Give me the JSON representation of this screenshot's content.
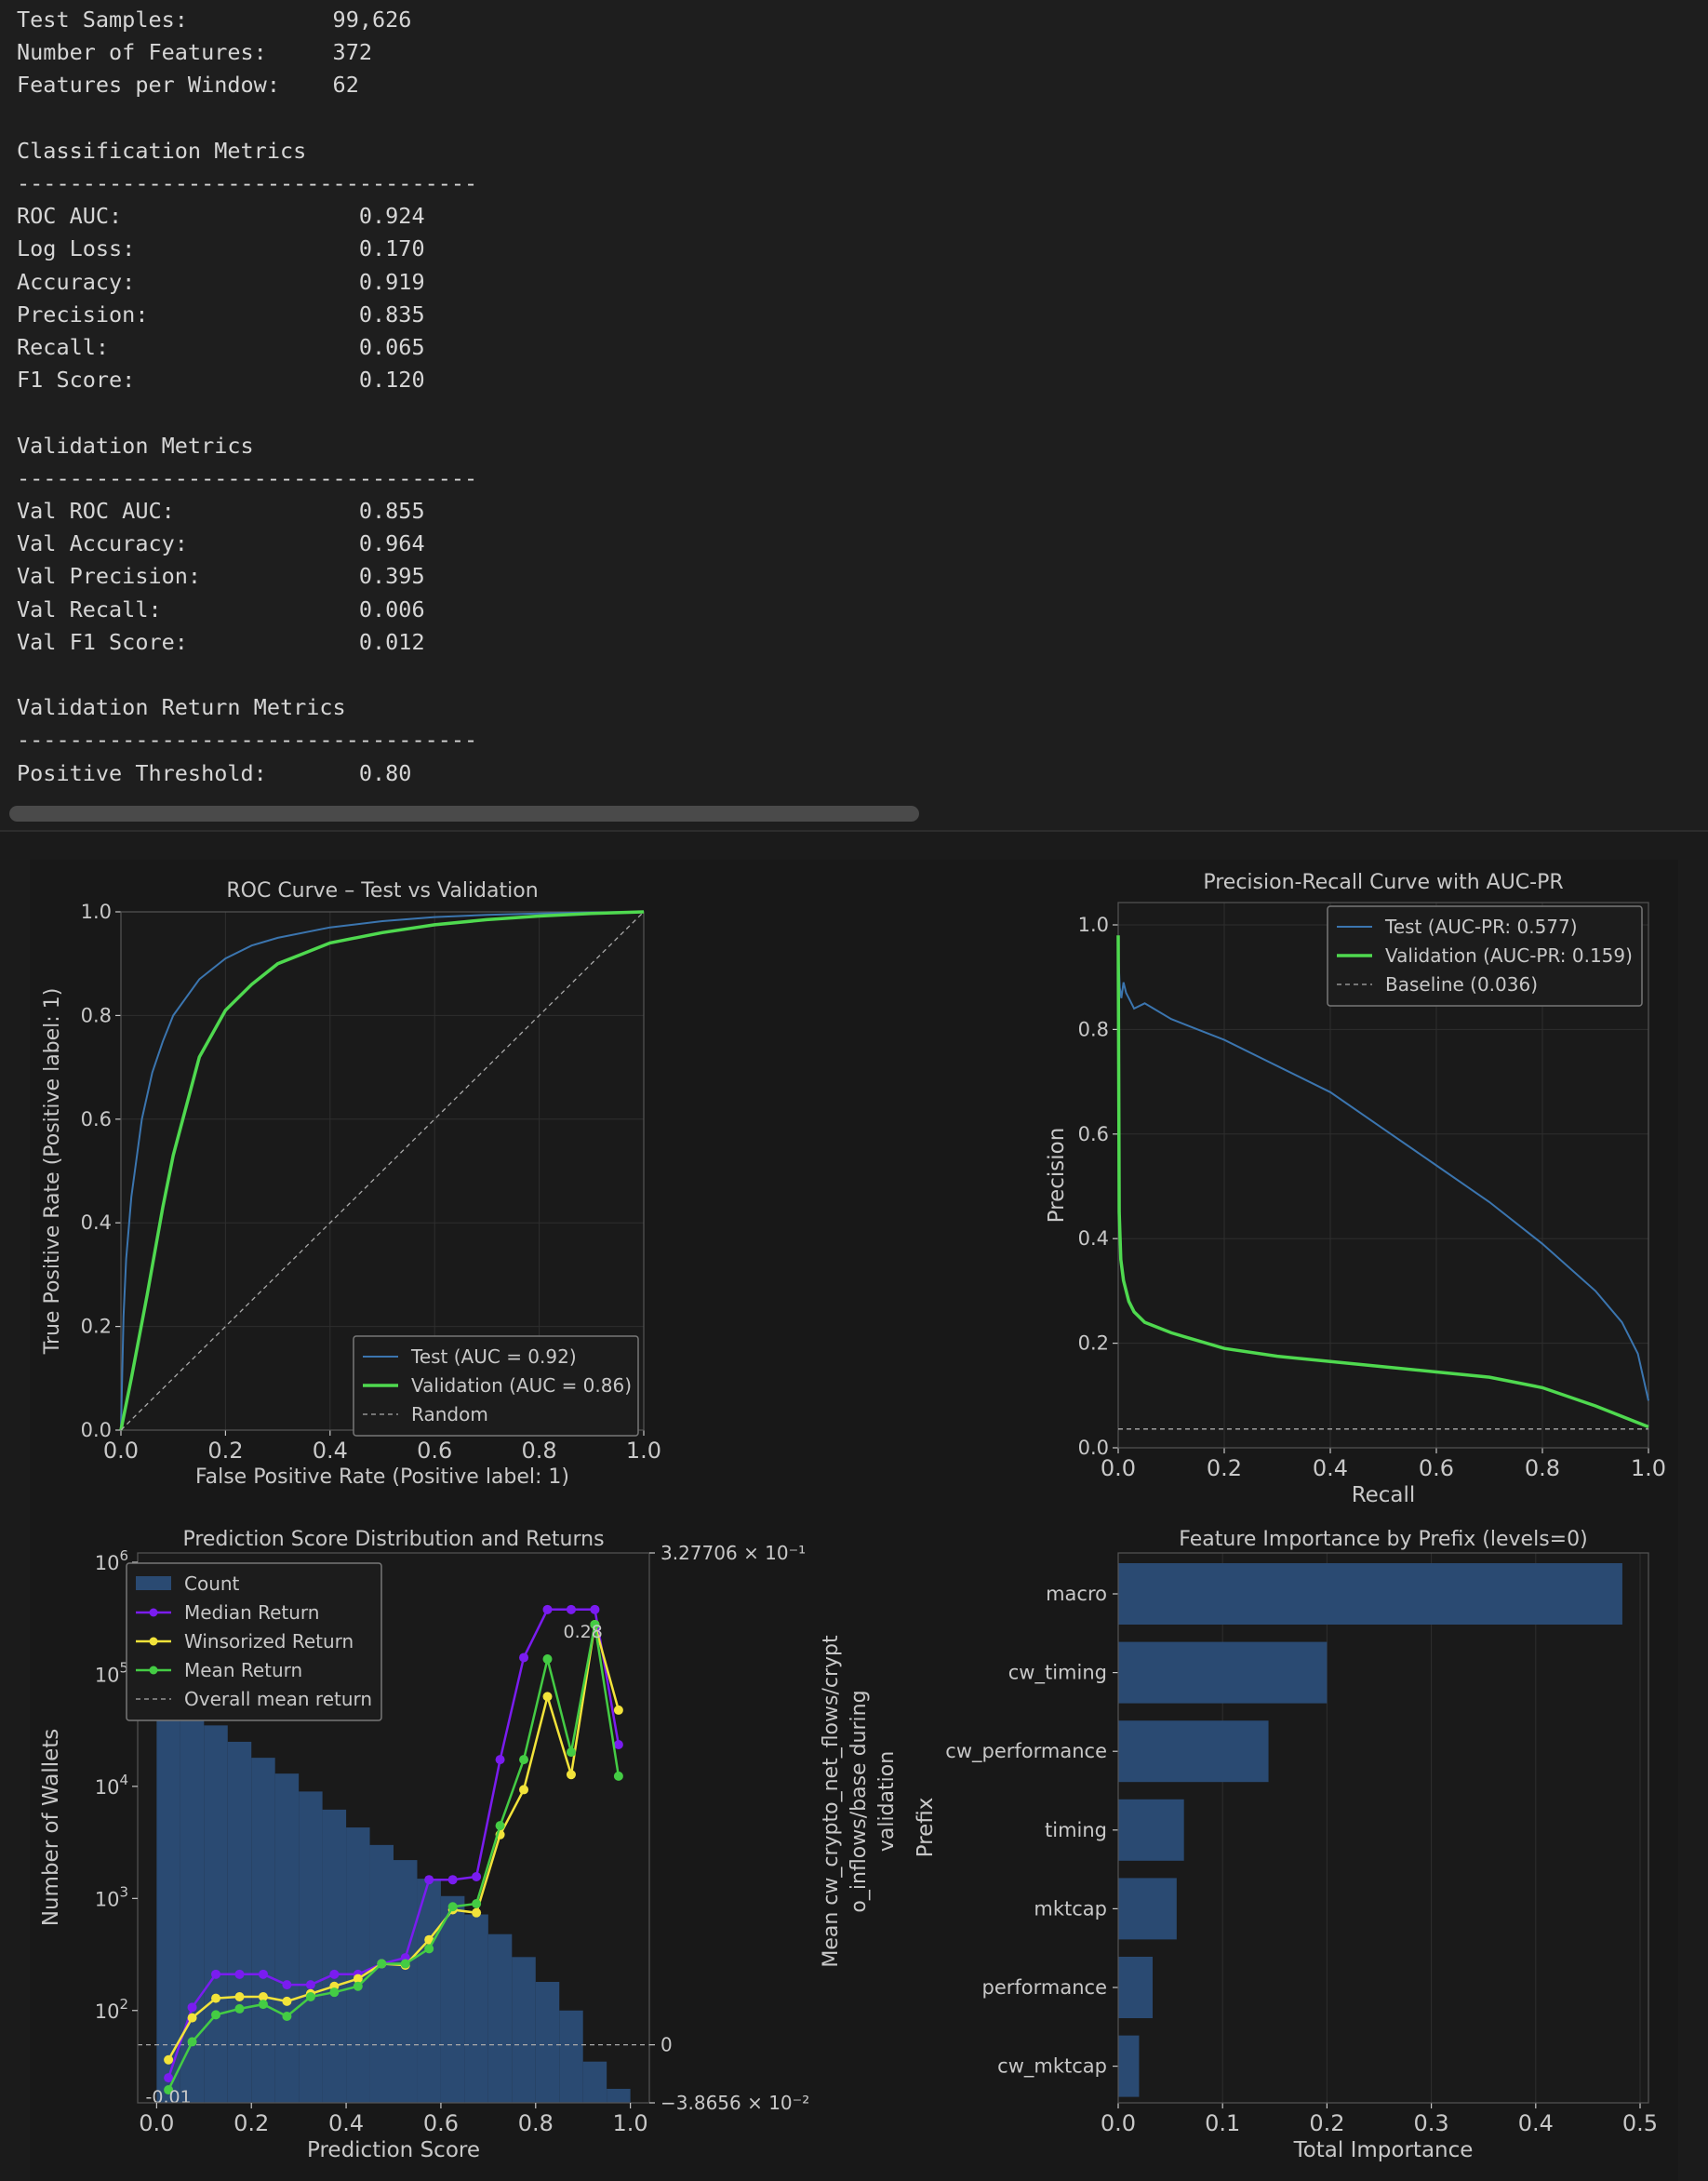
{
  "console": {
    "lines": [
      "Test Samples:           99,626",
      "Number of Features:     372",
      "Features per Window:    62",
      "",
      "Classification Metrics",
      "-----------------------------------",
      "ROC AUC:                  0.924",
      "Log Loss:                 0.170",
      "Accuracy:                 0.919",
      "Precision:                0.835",
      "Recall:                   0.065",
      "F1 Score:                 0.120",
      "",
      "Validation Metrics",
      "-----------------------------------",
      "Val ROC AUC:              0.855",
      "Val Accuracy:             0.964",
      "Val Precision:            0.395",
      "Val Recall:               0.006",
      "Val F1 Score:             0.012",
      "",
      "Validation Return Metrics",
      "-----------------------------------",
      "Positive Threshold:       0.80"
    ]
  },
  "colors": {
    "test": "#3b75af",
    "validation": "#4fd94f",
    "median": "#7a1cf0",
    "winsorized": "#f2e33a",
    "mean": "#44cc44",
    "bars": "#2a4a72",
    "text": "#c8c8c8",
    "axis_bg": "#1a1a1a",
    "grid": "#2e2e2e"
  },
  "chart_data": [
    {
      "id": "roc",
      "type": "line",
      "title": "ROC Curve – Test vs Validation",
      "xlabel": "False Positive Rate (Positive label: 1)",
      "ylabel": "True Positive Rate (Positive label: 1)",
      "xlim": [
        0,
        1
      ],
      "ylim": [
        0,
        1
      ],
      "xticks": [
        "0.0",
        "0.2",
        "0.4",
        "0.6",
        "0.8",
        "1.0"
      ],
      "yticks": [
        "0.0",
        "0.2",
        "0.4",
        "0.6",
        "0.8",
        "1.0"
      ],
      "grid": true,
      "legend_position": "lower-right",
      "series": [
        {
          "name": "Test (AUC = 0.92)",
          "style": "solid",
          "x": [
            0,
            0.005,
            0.01,
            0.02,
            0.04,
            0.06,
            0.08,
            0.1,
            0.15,
            0.2,
            0.25,
            0.3,
            0.4,
            0.5,
            0.6,
            0.7,
            0.8,
            0.9,
            1.0
          ],
          "y": [
            0,
            0.22,
            0.33,
            0.45,
            0.6,
            0.69,
            0.75,
            0.8,
            0.87,
            0.91,
            0.935,
            0.95,
            0.97,
            0.982,
            0.99,
            0.994,
            0.997,
            0.999,
            1.0
          ]
        },
        {
          "name": "Validation (AUC = 0.86)",
          "style": "solid",
          "x": [
            0,
            0.02,
            0.05,
            0.08,
            0.1,
            0.15,
            0.2,
            0.25,
            0.3,
            0.35,
            0.4,
            0.5,
            0.6,
            0.7,
            0.8,
            0.9,
            1.0
          ],
          "y": [
            0,
            0.1,
            0.26,
            0.43,
            0.53,
            0.72,
            0.81,
            0.86,
            0.9,
            0.92,
            0.94,
            0.96,
            0.975,
            0.985,
            0.992,
            0.997,
            1.0
          ]
        },
        {
          "name": "Random",
          "style": "dashed",
          "x": [
            0,
            1
          ],
          "y": [
            0,
            1
          ]
        }
      ]
    },
    {
      "id": "pr",
      "type": "line",
      "title": "Precision-Recall Curve with AUC-PR",
      "xlabel": "Recall",
      "ylabel": "Precision",
      "xlim": [
        0,
        1
      ],
      "ylim": [
        0,
        1
      ],
      "xticks": [
        "0.0",
        "0.2",
        "0.4",
        "0.6",
        "0.8",
        "1.0"
      ],
      "yticks": [
        "0.0",
        "0.2",
        "0.4",
        "0.6",
        "0.8",
        "1.0"
      ],
      "grid": true,
      "legend_position": "upper-right",
      "series": [
        {
          "name": "Test (AUC-PR: 0.577)",
          "style": "solid",
          "x": [
            0,
            0.003,
            0.006,
            0.01,
            0.015,
            0.02,
            0.03,
            0.05,
            0.1,
            0.15,
            0.2,
            0.3,
            0.4,
            0.5,
            0.6,
            0.7,
            0.8,
            0.9,
            0.95,
            0.98,
            1.0
          ],
          "y": [
            0.95,
            0.88,
            0.86,
            0.89,
            0.87,
            0.86,
            0.84,
            0.85,
            0.82,
            0.8,
            0.78,
            0.73,
            0.68,
            0.61,
            0.54,
            0.47,
            0.39,
            0.3,
            0.24,
            0.18,
            0.09
          ]
        },
        {
          "name": "Validation (AUC-PR: 0.159)",
          "style": "solid",
          "x": [
            0,
            0.002,
            0.005,
            0.01,
            0.02,
            0.03,
            0.05,
            0.1,
            0.2,
            0.3,
            0.4,
            0.5,
            0.6,
            0.7,
            0.8,
            0.9,
            0.95,
            1.0
          ],
          "y": [
            0.98,
            0.45,
            0.36,
            0.32,
            0.28,
            0.26,
            0.24,
            0.22,
            0.19,
            0.175,
            0.165,
            0.155,
            0.145,
            0.135,
            0.115,
            0.08,
            0.06,
            0.04
          ]
        },
        {
          "name": "Baseline (0.036)",
          "style": "dashed",
          "x": [
            0,
            1
          ],
          "y": [
            0.036,
            0.036
          ]
        }
      ]
    },
    {
      "id": "dist",
      "type": "bar",
      "title": "Prediction Score Distribution and Returns",
      "xlabel": "Prediction Score",
      "ylabel": "Number of Wallets",
      "y2label": "Mean cw_crypto_net_flows/crypto_inflows/base during validation",
      "y2label_lines": [
        "Mean cw_crypto_net_flows/crypt",
        "o_inflows/base during",
        "validation"
      ],
      "xlim": [
        -0.04,
        1.04
      ],
      "xticks": [
        "0.0",
        "0.2",
        "0.4",
        "0.6",
        "0.8",
        "1.0"
      ],
      "yscale": "log",
      "ylim": [
        15,
        1000000
      ],
      "yticks": [
        {
          "pow": "2",
          "v": 100
        },
        {
          "pow": "3",
          "v": 1000
        },
        {
          "pow": "4",
          "v": 10000
        },
        {
          "pow": "5",
          "v": 100000
        },
        {
          "pow": "6",
          "v": 1000000
        }
      ],
      "y2_range": [
        -0.038656,
        0.327706
      ],
      "y2_top_label": "3.27706 × 10⁻¹",
      "y2_zero_label": "0",
      "y2_bottom_label": "−3.8656 × 10⁻²",
      "annotations": [
        {
          "text": "-0.01",
          "x": 0.025,
          "y2": -0.03
        },
        {
          "text": "0.28",
          "x": 0.9,
          "y2": 0.28
        }
      ],
      "grid": false,
      "legend_position": "upper-left",
      "bars": {
        "name": "Count",
        "width": 0.05,
        "x": [
          0.025,
          0.075,
          0.125,
          0.175,
          0.225,
          0.275,
          0.325,
          0.375,
          0.425,
          0.475,
          0.525,
          0.575,
          0.625,
          0.675,
          0.725,
          0.775,
          0.825,
          0.875,
          0.925,
          0.975
        ],
        "values": [
          100000,
          52000,
          35000,
          25000,
          18000,
          13000,
          9000,
          6200,
          4300,
          3000,
          2200,
          1500,
          1050,
          720,
          480,
          300,
          180,
          100,
          35,
          20
        ]
      },
      "lines": [
        {
          "name": "Median Return",
          "x": [
            0.025,
            0.075,
            0.125,
            0.175,
            0.225,
            0.275,
            0.325,
            0.375,
            0.425,
            0.475,
            0.525,
            0.575,
            0.625,
            0.675,
            0.725,
            0.775,
            0.825,
            0.875,
            0.925,
            0.975
          ],
          "y": [
            -0.022,
            0.025,
            0.047,
            0.047,
            0.047,
            0.04,
            0.04,
            0.047,
            0.047,
            0.054,
            0.058,
            0.11,
            0.11,
            0.112,
            0.19,
            0.258,
            0.29,
            0.29,
            0.29,
            0.2
          ]
        },
        {
          "name": "Winsorized Return",
          "x": [
            0.025,
            0.075,
            0.125,
            0.175,
            0.225,
            0.275,
            0.325,
            0.375,
            0.425,
            0.475,
            0.525,
            0.575,
            0.625,
            0.675,
            0.725,
            0.775,
            0.825,
            0.875,
            0.925,
            0.975
          ],
          "y": [
            -0.01,
            0.018,
            0.031,
            0.032,
            0.032,
            0.029,
            0.034,
            0.039,
            0.044,
            0.054,
            0.053,
            0.07,
            0.09,
            0.088,
            0.14,
            0.17,
            0.232,
            0.18,
            0.28,
            0.223
          ]
        },
        {
          "name": "Mean Return",
          "x": [
            0.025,
            0.075,
            0.125,
            0.175,
            0.225,
            0.275,
            0.325,
            0.375,
            0.425,
            0.475,
            0.525,
            0.575,
            0.625,
            0.675,
            0.725,
            0.775,
            0.825,
            0.875,
            0.925,
            0.975
          ],
          "y": [
            -0.03,
            0.002,
            0.02,
            0.024,
            0.027,
            0.019,
            0.032,
            0.035,
            0.039,
            0.054,
            0.054,
            0.064,
            0.092,
            0.094,
            0.146,
            0.19,
            0.257,
            0.195,
            0.28,
            0.179
          ]
        }
      ],
      "overall_mean": {
        "name": "Overall mean return",
        "value": 0
      }
    },
    {
      "id": "fi",
      "type": "bar",
      "orientation": "horizontal",
      "title": "Feature Importance by Prefix (levels=0)",
      "xlabel": "Total Importance",
      "ylabel": "Prefix",
      "xlim": [
        0,
        0.5
      ],
      "xticks": [
        "0.0",
        "0.1",
        "0.2",
        "0.3",
        "0.4",
        "0.5"
      ],
      "grid": true,
      "categories": [
        "macro",
        "cw_timing",
        "cw_performance",
        "timing",
        "mktcap",
        "performance",
        "cw_mktcap"
      ],
      "values": [
        0.483,
        0.2,
        0.144,
        0.063,
        0.056,
        0.033,
        0.02
      ]
    }
  ]
}
